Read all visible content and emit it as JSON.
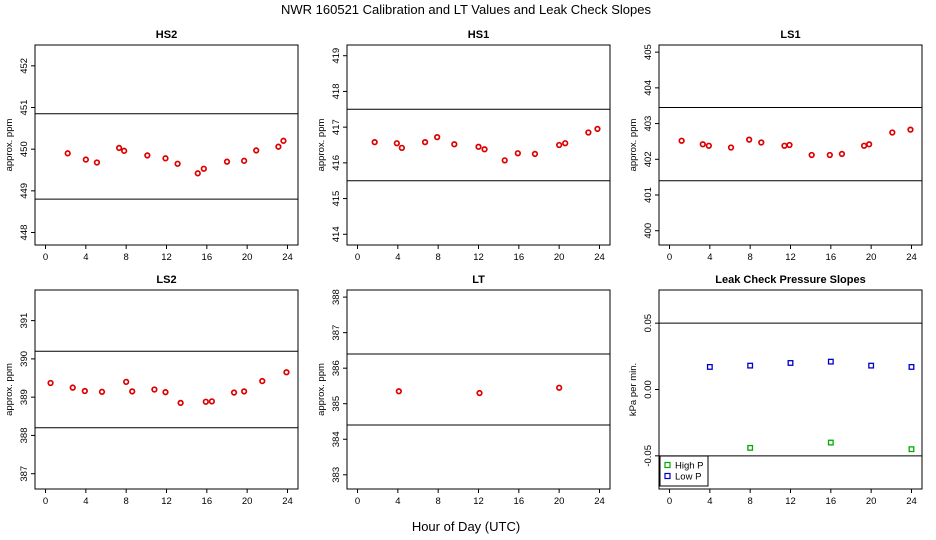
{
  "title": "NWR  160521  Calibration and LT Values and Leak Check Slopes",
  "xlabel": "Hour of Day (UTC)",
  "colors": {
    "points": "#dd0000",
    "high_p": "#00aa00",
    "low_p": "#0000cc"
  },
  "chart_data": [
    {
      "type": "scatter",
      "title": "HS2",
      "ylabel": "approx. ppm",
      "xlim": [
        0,
        24
      ],
      "ylim": [
        447.7,
        452.5
      ],
      "xticks": [
        "0",
        "4",
        "8",
        "12",
        "16",
        "20",
        "24"
      ],
      "yticks": [
        "448",
        "449",
        "450",
        "451",
        "452"
      ],
      "ytick_values": [
        448,
        449,
        450,
        451,
        452
      ],
      "hlines": [
        448.8,
        450.85
      ],
      "series": [
        {
          "color": "red",
          "x": [
            2.2,
            4.0,
            5.1,
            7.3,
            7.8,
            10.1,
            11.9,
            13.1,
            15.1,
            15.7,
            18.0,
            19.7,
            20.9,
            23.1,
            23.6
          ],
          "y": [
            449.9,
            449.75,
            449.68,
            450.03,
            449.96,
            449.85,
            449.78,
            449.65,
            449.42,
            449.53,
            449.7,
            449.72,
            449.97,
            450.06,
            450.2
          ]
        }
      ]
    },
    {
      "type": "scatter",
      "title": "HS1",
      "ylabel": "approx. ppm",
      "xlim": [
        0,
        24
      ],
      "ylim": [
        413.7,
        419.3
      ],
      "xticks": [
        "0",
        "4",
        "8",
        "12",
        "16",
        "20",
        "24"
      ],
      "yticks": [
        "414",
        "415",
        "416",
        "417",
        "418",
        "419"
      ],
      "ytick_values": [
        414,
        415,
        416,
        417,
        418,
        419
      ],
      "hlines": [
        415.5,
        417.5
      ],
      "series": [
        {
          "color": "red",
          "x": [
            1.7,
            3.9,
            4.4,
            6.7,
            7.9,
            9.6,
            12.0,
            12.6,
            14.6,
            15.9,
            17.6,
            20.0,
            20.6,
            22.9,
            23.8
          ],
          "y": [
            416.58,
            416.55,
            416.42,
            416.58,
            416.72,
            416.52,
            416.45,
            416.38,
            416.07,
            416.27,
            416.25,
            416.5,
            416.55,
            416.85,
            416.95
          ]
        }
      ]
    },
    {
      "type": "scatter",
      "title": "LS1",
      "ylabel": "approx. ppm",
      "xlim": [
        0,
        24
      ],
      "ylim": [
        399.6,
        405.2
      ],
      "xticks": [
        "0",
        "4",
        "8",
        "12",
        "16",
        "20",
        "24"
      ],
      "yticks": [
        "400",
        "401",
        "402",
        "403",
        "404",
        "405"
      ],
      "ytick_values": [
        400,
        401,
        402,
        403,
        404,
        405
      ],
      "hlines": [
        401.4,
        403.45
      ],
      "series": [
        {
          "color": "red",
          "x": [
            1.2,
            3.3,
            3.9,
            6.1,
            7.9,
            9.1,
            11.4,
            11.9,
            14.1,
            15.9,
            17.1,
            19.3,
            19.8,
            22.1,
            23.9
          ],
          "y": [
            402.52,
            402.42,
            402.38,
            402.33,
            402.55,
            402.47,
            402.38,
            402.4,
            402.12,
            402.12,
            402.15,
            402.38,
            402.42,
            402.75,
            402.83
          ]
        }
      ]
    },
    {
      "type": "scatter",
      "title": "LS2",
      "ylabel": "approx. ppm",
      "xlim": [
        0,
        24
      ],
      "ylim": [
        386.6,
        391.8
      ],
      "xticks": [
        "0",
        "4",
        "8",
        "12",
        "16",
        "20",
        "24"
      ],
      "yticks": [
        "387",
        "388",
        "389",
        "390",
        "391"
      ],
      "ytick_values": [
        387,
        388,
        389,
        390,
        391
      ],
      "hlines": [
        388.2,
        390.2
      ],
      "series": [
        {
          "color": "red",
          "x": [
            0.5,
            2.7,
            3.9,
            5.6,
            8.0,
            8.6,
            10.8,
            11.9,
            13.4,
            15.9,
            16.5,
            18.7,
            19.7,
            21.5,
            23.9
          ],
          "y": [
            389.37,
            389.25,
            389.16,
            389.14,
            389.4,
            389.15,
            389.2,
            389.13,
            388.85,
            388.88,
            388.89,
            389.12,
            389.15,
            389.42,
            389.65
          ]
        }
      ]
    },
    {
      "type": "scatter",
      "title": "LT",
      "ylabel": "approx. ppm",
      "xlim": [
        0,
        24
      ],
      "ylim": [
        382.6,
        388.2
      ],
      "xticks": [
        "0",
        "4",
        "8",
        "12",
        "16",
        "20",
        "24"
      ],
      "yticks": [
        "383",
        "384",
        "385",
        "386",
        "387",
        "388"
      ],
      "ytick_values": [
        383,
        384,
        385,
        386,
        387,
        388
      ],
      "hlines": [
        384.4,
        386.4
      ],
      "series": [
        {
          "color": "red",
          "x": [
            4.1,
            12.1,
            20.0
          ],
          "y": [
            385.35,
            385.3,
            385.45
          ]
        }
      ]
    },
    {
      "type": "scatter",
      "title": "Leak Check Pressure Slopes",
      "ylabel": "kPa per min.",
      "xlim": [
        0,
        24
      ],
      "ylim": [
        -0.075,
        0.075
      ],
      "xticks": [
        "0",
        "4",
        "8",
        "12",
        "16",
        "20",
        "24"
      ],
      "yticks": [
        "-0.05",
        "0.00",
        "0.05"
      ],
      "ytick_values": [
        -0.05,
        0.0,
        0.05
      ],
      "hlines": [
        -0.05,
        0.05
      ],
      "legend": {
        "position": "bottom-left",
        "entries": [
          "High P",
          "Low P"
        ]
      },
      "series": [
        {
          "name": "High P",
          "color": "green",
          "x": [
            8.0,
            16.0,
            24.0
          ],
          "y": [
            -0.044,
            -0.04,
            -0.045
          ]
        },
        {
          "name": "Low P",
          "color": "blue",
          "x": [
            4.0,
            8.0,
            12.0,
            16.0,
            20.0,
            24.0
          ],
          "y": [
            0.017,
            0.018,
            0.02,
            0.021,
            0.018,
            0.017
          ]
        }
      ]
    }
  ]
}
